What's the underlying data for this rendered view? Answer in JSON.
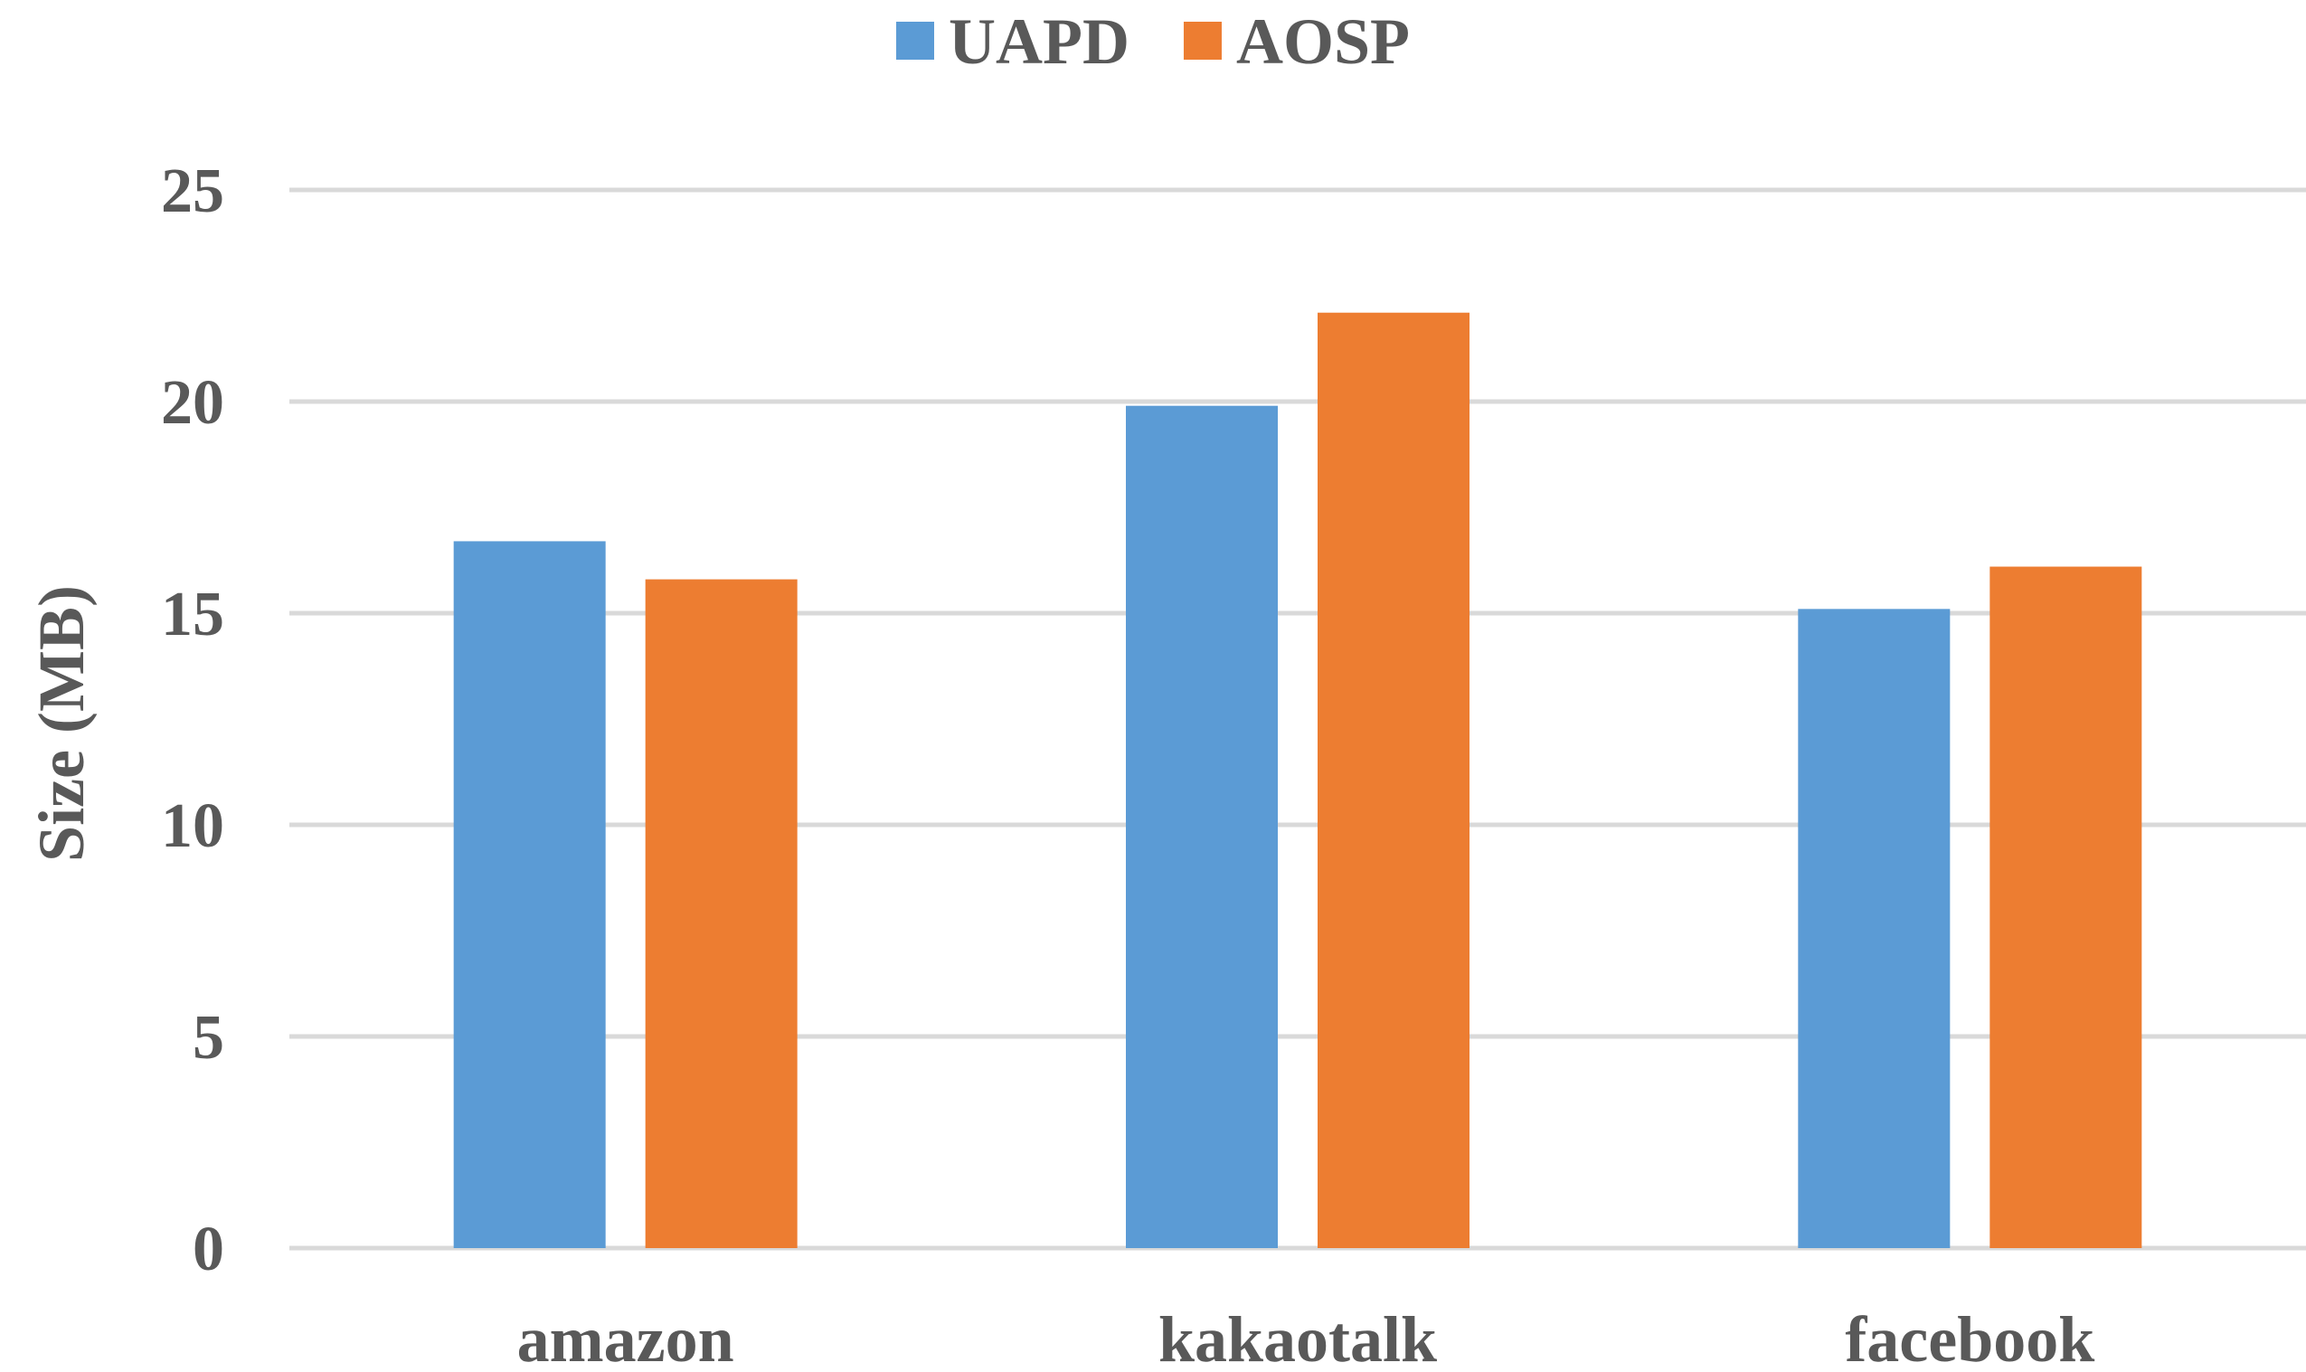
{
  "chart_data": {
    "type": "bar",
    "categories": [
      "amazon",
      "kakaotalk",
      "facebook"
    ],
    "series": [
      {
        "name": "UAPD",
        "color": "#5B9BD5",
        "values": [
          16.7,
          19.9,
          15.1
        ]
      },
      {
        "name": "AOSP",
        "color": "#ED7D31",
        "values": [
          15.8,
          22.1,
          16.1
        ]
      }
    ],
    "ylabel": "Size (MB)",
    "xlabel": "",
    "ylim": [
      0,
      25
    ],
    "yticks": [
      0,
      5,
      10,
      15,
      20,
      25
    ],
    "grid": true,
    "gridColor": "#D9D9D9",
    "legend": {
      "position": "top"
    }
  }
}
